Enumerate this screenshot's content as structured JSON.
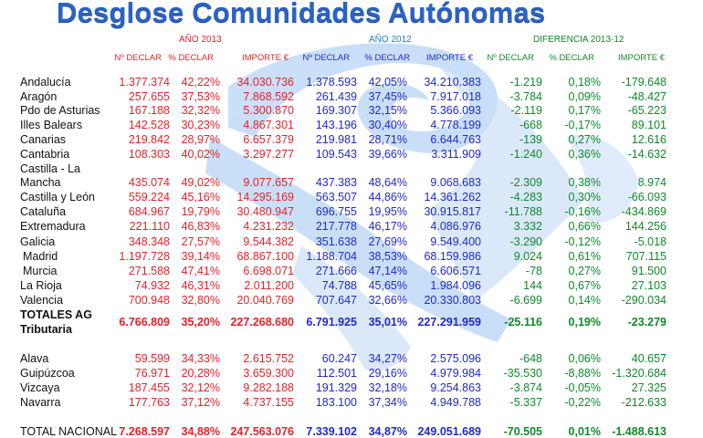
{
  "title": "Desglose Comunidades Autónomas",
  "colors": {
    "y2013": "#e8202a",
    "y2012": "#1f2ac8",
    "diff": "#0f8a2a",
    "title": "#2a63c4"
  },
  "groups": {
    "y2013": "AÑO 2013",
    "y2012": "AÑO 2012",
    "diff": "DIFERENCIA 2013-12"
  },
  "headers": [
    "Nº  DECLAR",
    "% DECLAR",
    "IMPORTE €",
    "Nº  DECLAR",
    "% DECLAR",
    "IMPORTE €",
    "Nº  DECLAR",
    "% DECLAR",
    "IMPORTE €"
  ],
  "rows": [
    {
      "label": "Andalucía",
      "values": [
        "1.377.374",
        "42,22%",
        "34.030.736",
        "1.378.593",
        "42,05%",
        "34.210.383",
        "-1.219",
        "0,18%",
        "-179.648"
      ]
    },
    {
      "label": "Aragón",
      "values": [
        "257.655",
        "37,53%",
        "7.868.592",
        "261.439",
        "37,45%",
        "7.917.018",
        "-3.784",
        "0,09%",
        "-48.427"
      ]
    },
    {
      "label": "Pdo de Asturias",
      "values": [
        "167.188",
        "32,32%",
        "5.300.870",
        "169.307",
        "32,15%",
        "5.366.093",
        "-2.119",
        "0,17%",
        "-65.223"
      ]
    },
    {
      "label": "Illes Balears",
      "values": [
        "142.528",
        "30,23%",
        "4.867.301",
        "143.196",
        "30,40%",
        "4.778.199",
        "-668",
        "-0,17%",
        "89.101"
      ]
    },
    {
      "label": "Canarias",
      "values": [
        "219.842",
        "28,97%",
        "6.657.379",
        "219.981",
        "28,71%",
        "6.644.763",
        "-139",
        "0,27%",
        "12.616"
      ]
    },
    {
      "label": "Cantabria",
      "values": [
        "108.303",
        "40,02%",
        "3.297.277",
        "109.543",
        "39,66%",
        "3.311.909",
        "-1.240",
        "0,36%",
        "-14.632"
      ]
    },
    {
      "label": "Castilla - La",
      "label2": "Mancha",
      "values": [
        "435.074",
        "49,02%",
        "9.077.657",
        "437.383",
        "48,64%",
        "9.068.683",
        "-2.309",
        "0,38%",
        "8.974"
      ]
    },
    {
      "label": "Castilla y León",
      "values": [
        "559.224",
        "45,16%",
        "14.295.169",
        "563.507",
        "44,86%",
        "14.361.262",
        "-4.283",
        "0,30%",
        "-66.093"
      ]
    },
    {
      "label": "Cataluña",
      "values": [
        "684.967",
        "19,79%",
        "30.480.947",
        "696.755",
        "19,95%",
        "30.915.817",
        "-11.788",
        "-0,16%",
        "-434.869"
      ]
    },
    {
      "label": "Extremadura",
      "values": [
        "221.110",
        "46,83%",
        "4.231.232",
        "217.778",
        "46,17%",
        "4.086.976",
        "3.332",
        "0,66%",
        "144.256"
      ]
    },
    {
      "label": "Galicia",
      "values": [
        "348.348",
        "27,57%",
        "9.544.382",
        "351.638",
        "27,69%",
        "9.549.400",
        "-3.290",
        "-0,12%",
        "-5.018"
      ]
    },
    {
      "label": " Madrid",
      "values": [
        "1.197.728",
        "39,14%",
        "68.867.100",
        "1.188.704",
        "38,53%",
        "68.159.986",
        "9.024",
        "0,61%",
        "707.115"
      ]
    },
    {
      "label": " Murcia",
      "values": [
        "271.588",
        "47,41%",
        "6.698.071",
        "271.666",
        "47,14%",
        "6.606.571",
        "-78",
        "0,27%",
        "91.500"
      ]
    },
    {
      "label": "La Rioja",
      "values": [
        "74.932",
        "46,31%",
        "2.011.200",
        "74.788",
        "45,65%",
        "1.984.096",
        "144",
        "0,67%",
        "27.103"
      ]
    },
    {
      "label": "Valencia",
      "values": [
        "700.948",
        "32,80%",
        "20.040.769",
        "707.647",
        "32,66%",
        "20.330.803",
        "-6.699",
        "0,14%",
        "-290.034"
      ]
    },
    {
      "label": "TOTALES AG",
      "label2": "Tributaria",
      "bold": true,
      "values": [
        "6.766.809",
        "35,20%",
        "227.268.680",
        "6.791.925",
        "35,01%",
        "227.291.959",
        "-25.116",
        "0,19%",
        "-23.279"
      ]
    },
    {
      "label": "Alava",
      "values": [
        "59.599",
        "34,33%",
        "2.615.752",
        "60.247",
        "34,27%",
        "2.575.096",
        "-648",
        "0,06%",
        "40.657"
      ]
    },
    {
      "label": "Guipúzcoa",
      "values": [
        "76.971",
        "20,28%",
        "3.659.300",
        "112.501",
        "29,16%",
        "4.979.984",
        "-35.530",
        "-8,88%",
        "-1.320.684"
      ]
    },
    {
      "label": "Vizcaya",
      "values": [
        "187.455",
        "32,12%",
        "9.282.188",
        "191.329",
        "32,18%",
        "9.254.863",
        "-3.874",
        "-0,05%",
        "27.325"
      ]
    },
    {
      "label": "Navarra",
      "values": [
        "177.763",
        "37,12%",
        "4.737.155",
        "183.100",
        "37,34%",
        "4.949.788",
        "-5.337",
        "-0,22%",
        "-212.633"
      ]
    },
    {
      "label": "TOTAL NACIONAL",
      "boldValues": true,
      "values": [
        "7.268.597",
        "34,88%",
        "247.563.076",
        "7.339.102",
        "34,87%",
        "249.051.689",
        "-70.505",
        "0,01%",
        "-1.488.613"
      ]
    }
  ]
}
